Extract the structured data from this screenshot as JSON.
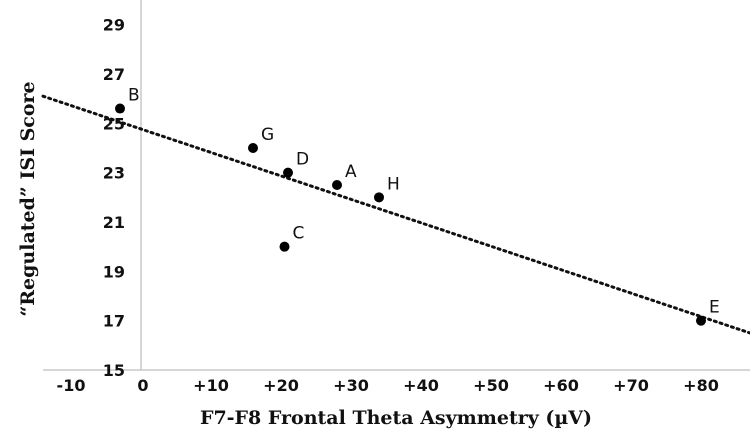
{
  "chart_data": {
    "type": "scatter",
    "title": "",
    "xlabel": "F7-F8 Frontal Theta Asymmetry (µV)",
    "ylabel": "“Regulated” ISI Score",
    "xlim": [
      -14,
      87
    ],
    "ylim": [
      15,
      30
    ],
    "x_ticks": [
      "-10",
      "0",
      "+10",
      "+20",
      "+30",
      "+40",
      "+50",
      "+60",
      "+70",
      "+80"
    ],
    "x_tick_values": [
      -10,
      0,
      10,
      20,
      30,
      40,
      50,
      60,
      70,
      80
    ],
    "y_ticks": [
      "15",
      "17",
      "19",
      "21",
      "23",
      "25",
      "27",
      "29"
    ],
    "y_tick_values": [
      15,
      17,
      19,
      21,
      23,
      25,
      27,
      29
    ],
    "grid": false,
    "legend": "none",
    "series": [
      {
        "points": [
          {
            "label": "B",
            "x": -3,
            "y": 25.6
          },
          {
            "label": "G",
            "x": 16,
            "y": 24.0
          },
          {
            "label": "D",
            "x": 21,
            "y": 23.0
          },
          {
            "label": "A",
            "x": 28,
            "y": 22.5
          },
          {
            "label": "H",
            "x": 34,
            "y": 22.0
          },
          {
            "label": "C",
            "x": 20.5,
            "y": 20.0
          },
          {
            "label": "E",
            "x": 80,
            "y": 17.0
          }
        ]
      }
    ],
    "trendline": {
      "style": "dotted",
      "start": {
        "x": -14,
        "y": 26.1
      },
      "end": {
        "x": 87,
        "y": 16.5
      }
    },
    "colors": {
      "marker": "#000000",
      "axis": "#c8c8c8",
      "text": "#111111"
    }
  }
}
